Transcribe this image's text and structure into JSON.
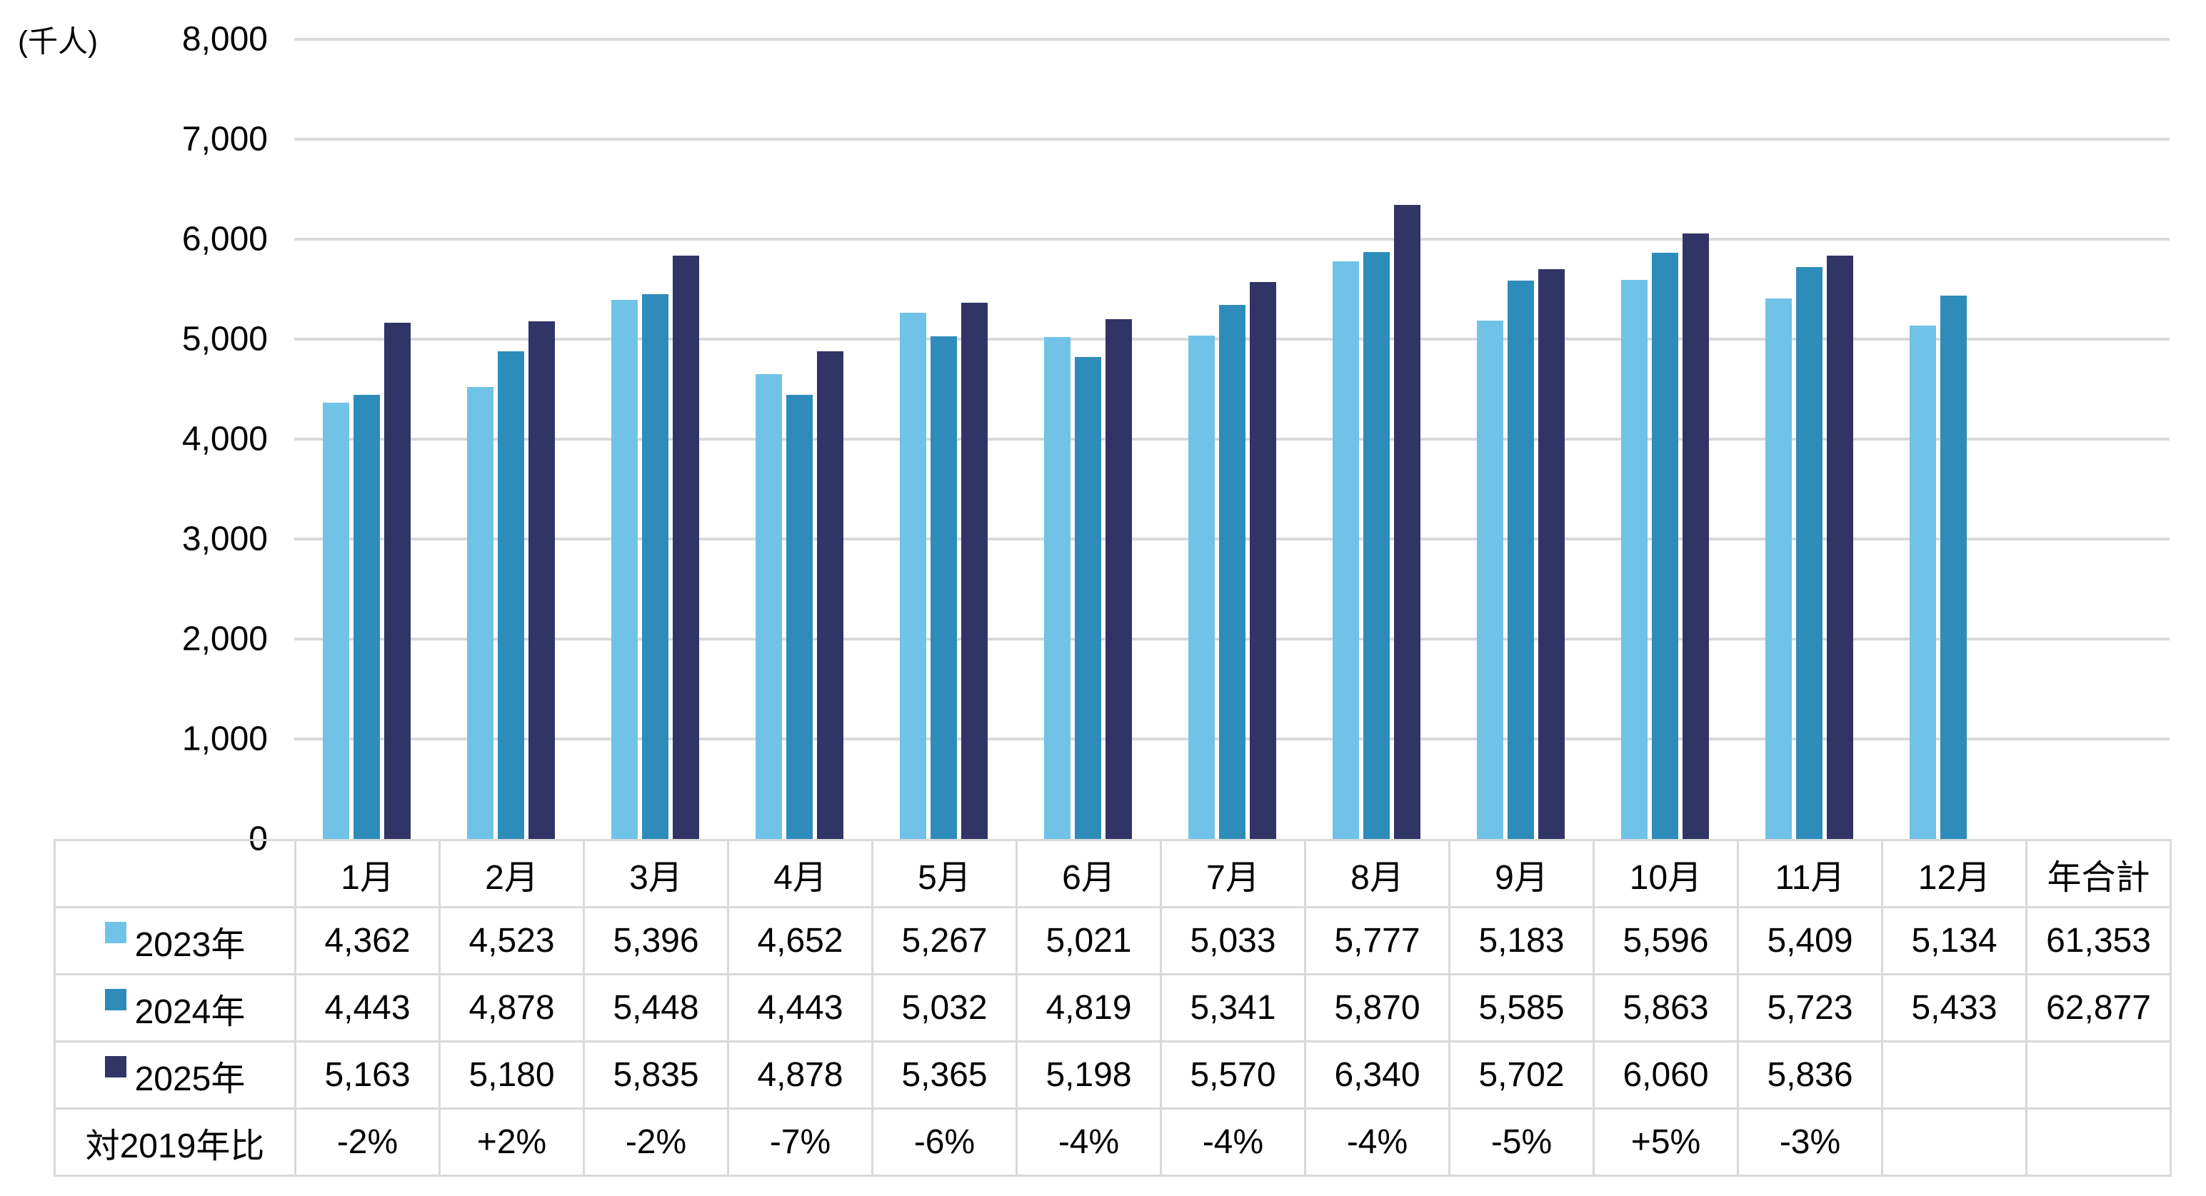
{
  "chart_data": {
    "type": "bar",
    "title": "",
    "unit_label": "(千人)",
    "categories": [
      "1月",
      "2月",
      "3月",
      "4月",
      "5月",
      "6月",
      "7月",
      "8月",
      "9月",
      "10月",
      "11月",
      "12月"
    ],
    "total_column_label": "年合計",
    "series": [
      {
        "name": "2023年",
        "color": "#70C3E6",
        "values": [
          4362,
          4523,
          5396,
          4652,
          5267,
          5021,
          5033,
          5777,
          5183,
          5596,
          5409,
          5134
        ],
        "total": 61353
      },
      {
        "name": "2024年",
        "color": "#2E8CBA",
        "values": [
          4443,
          4878,
          5448,
          4443,
          5032,
          4819,
          5341,
          5870,
          5585,
          5863,
          5723,
          5433
        ],
        "total": 62877
      },
      {
        "name": "2025年",
        "color": "#303566",
        "values": [
          5163,
          5180,
          5835,
          4878,
          5365,
          5198,
          5570,
          6340,
          5702,
          6060,
          5836
        ],
        "total": null
      }
    ],
    "comparison_row": {
      "label": "対2019年比",
      "values": [
        "-2%",
        "+2%",
        "-2%",
        "-7%",
        "-6%",
        "-4%",
        "-4%",
        "-4%",
        "-5%",
        "+5%",
        "-3%"
      ]
    },
    "ylim": [
      0,
      8000
    ],
    "y_ticks": [
      0,
      1000,
      2000,
      3000,
      4000,
      5000,
      6000,
      7000,
      8000
    ],
    "grid": true,
    "legend_position": "table-rows-left",
    "colors": {
      "gridline": "#D9D9D9",
      "table_border": "#D9D9D9",
      "text": "#000000"
    }
  }
}
